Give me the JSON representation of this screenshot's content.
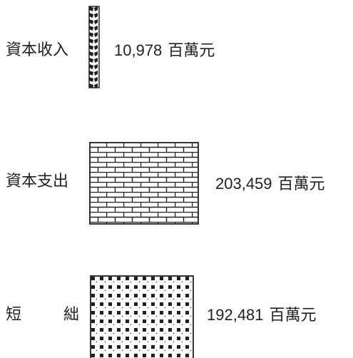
{
  "rows": [
    {
      "label": "資本收入",
      "value": "10,978",
      "unit": "百萬元",
      "pattern": "diagonal-chain",
      "amount": 10978
    },
    {
      "label": "資本支出",
      "value": "203,459",
      "unit": "百萬元",
      "pattern": "brick",
      "amount": 203459
    },
    {
      "label_part1": "短",
      "label_part2": "絀",
      "value": "192,481",
      "unit": "百萬元",
      "pattern": "dot-grid",
      "amount": 192481
    }
  ],
  "colors": {
    "ink": "#231f20",
    "background": "#ffffff"
  }
}
